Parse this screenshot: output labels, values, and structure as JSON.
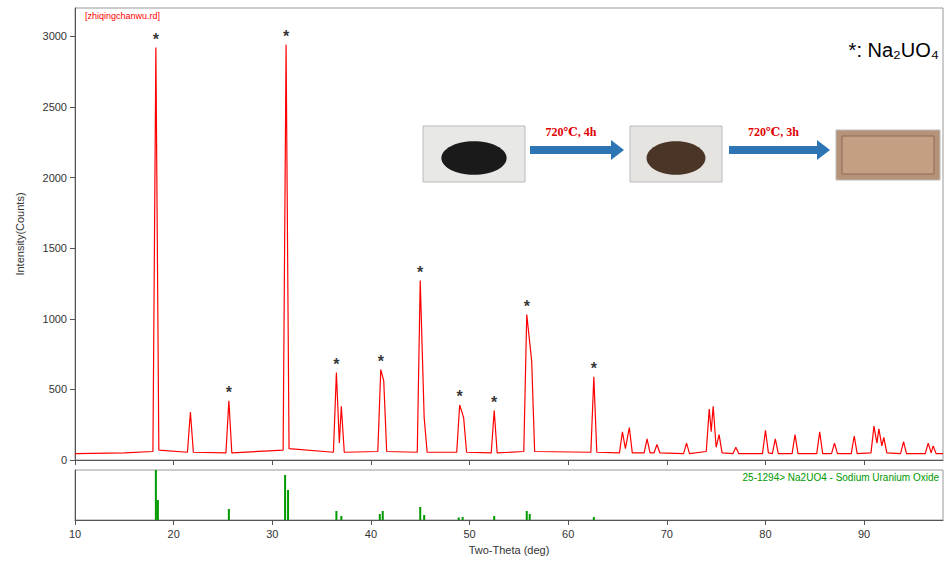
{
  "chart_data": [
    {
      "type": "line",
      "title": "[zhiqingchanwu.rd]",
      "y_label": "Intensity(Counts)",
      "color": "#ff0000",
      "xlim": [
        10,
        98
      ],
      "xticks": [
        10,
        20,
        30,
        40,
        50,
        60,
        70,
        80,
        90
      ],
      "ylim": [
        0,
        3200
      ],
      "yticks": [
        0,
        500,
        1000,
        1500,
        2000,
        2500,
        3000
      ],
      "grid": false,
      "tick_labels": "y",
      "x": [
        10,
        15,
        17.9,
        18.2,
        18.5,
        21.4,
        21.7,
        22.0,
        25.3,
        25.6,
        25.9,
        31.1,
        31.4,
        31.7,
        36.2,
        36.5,
        36.8,
        37.0,
        37.3,
        40.7,
        41.0,
        41.3,
        41.6,
        44.7,
        45.0,
        45.4,
        45.7,
        48.7,
        49.0,
        49.4,
        49.7,
        52.2,
        52.5,
        52.8,
        55.5,
        55.8,
        56.3,
        56.6,
        62.3,
        62.6,
        62.9,
        65.2,
        65.5,
        65.8,
        66.2,
        66.5,
        67.7,
        68.0,
        68.3,
        68.7,
        69.0,
        69.3,
        71.7,
        72.0,
        72.3,
        74.0,
        74.3,
        74.5,
        74.7,
        75.0,
        75.3,
        75.6,
        76.7,
        77.0,
        77.3,
        79.7,
        80.0,
        80.3,
        80.7,
        81.0,
        81.3,
        82.7,
        83.0,
        83.3,
        85.2,
        85.5,
        85.8,
        86.7,
        87.0,
        87.3,
        88.7,
        89.0,
        89.3,
        90.7,
        91.0,
        91.3,
        91.5,
        91.8,
        92.0,
        92.3,
        93.7,
        94.0,
        94.3,
        96.2,
        96.5,
        96.8,
        97.0,
        97.3,
        98
      ],
      "values": [
        45,
        50,
        60,
        2920,
        70,
        55,
        340,
        55,
        50,
        420,
        50,
        70,
        2940,
        80,
        55,
        620,
        120,
        380,
        55,
        60,
        640,
        560,
        60,
        55,
        1270,
        300,
        55,
        55,
        390,
        300,
        55,
        50,
        350,
        50,
        60,
        1030,
        700,
        60,
        55,
        590,
        55,
        50,
        200,
        80,
        230,
        50,
        50,
        150,
        50,
        50,
        110,
        50,
        45,
        120,
        45,
        60,
        360,
        200,
        380,
        90,
        180,
        50,
        45,
        90,
        45,
        45,
        210,
        50,
        45,
        150,
        45,
        45,
        180,
        45,
        45,
        200,
        45,
        45,
        120,
        45,
        45,
        170,
        45,
        50,
        240,
        120,
        220,
        100,
        160,
        50,
        45,
        130,
        45,
        45,
        120,
        50,
        100,
        45,
        45
      ],
      "annotations": [
        {
          "text": "*",
          "x": 18.2,
          "y": 2920
        },
        {
          "text": "*",
          "x": 25.6,
          "y": 420
        },
        {
          "text": "*",
          "x": 31.4,
          "y": 2940
        },
        {
          "text": "*",
          "x": 36.5,
          "y": 620
        },
        {
          "text": "*",
          "x": 41.0,
          "y": 640
        },
        {
          "text": "*",
          "x": 45.0,
          "y": 1270
        },
        {
          "text": "*",
          "x": 49.0,
          "y": 390
        },
        {
          "text": "*",
          "x": 52.5,
          "y": 350
        },
        {
          "text": "*",
          "x": 55.8,
          "y": 1030
        },
        {
          "text": "*",
          "x": 62.6,
          "y": 590
        }
      ],
      "marker_key": "*: Na₂UO₄",
      "inset_labels": [
        "720℃, 4h",
        "720℃, 3h"
      ]
    },
    {
      "type": "bar",
      "title": "25-1294> Na2UO4 - Sodium Uranium Oxide",
      "x_label": "Two-Theta (deg)",
      "color": "#009900",
      "xlim": [
        10,
        98
      ],
      "xticks": [
        10,
        20,
        30,
        40,
        50,
        60,
        70,
        80,
        90
      ],
      "ylim": [
        0,
        100
      ],
      "grid": false,
      "tick_labels": "x",
      "x": [
        18.2,
        18.4,
        25.6,
        31.3,
        31.6,
        36.5,
        37.0,
        40.9,
        41.2,
        45.0,
        45.4,
        48.9,
        49.3,
        52.5,
        55.8,
        56.1,
        62.6
      ],
      "values": [
        100,
        40,
        22,
        90,
        60,
        18,
        8,
        12,
        18,
        26,
        10,
        5,
        6,
        8,
        18,
        12,
        6
      ]
    }
  ]
}
